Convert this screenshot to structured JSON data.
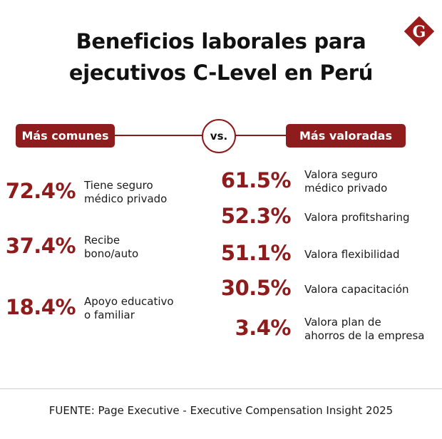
{
  "title": {
    "line1": "Beneficios laborales para",
    "line2": "ejecutivos C-Level en Perú"
  },
  "logo": {
    "letter": "G",
    "color": "#9b1b1b"
  },
  "header": {
    "left_label": "Más comunes",
    "vs_label": "vs.",
    "right_label": "Más valoradas"
  },
  "colors": {
    "accent": "#8f1c1c",
    "text": "#1a1a1a"
  },
  "chart_data": {
    "type": "table",
    "title": "Beneficios laborales para ejecutivos C-Level en Perú",
    "groups": [
      {
        "name": "Más comunes",
        "items": [
          {
            "value": "72.4%",
            "label_lines": [
              "Tiene seguro",
              "médico privado"
            ]
          },
          {
            "value": "37.4%",
            "label_lines": [
              "Recibe",
              "bono/auto"
            ]
          },
          {
            "value": "18.4%",
            "label_lines": [
              "Apoyo educativo",
              "o familiar"
            ]
          }
        ]
      },
      {
        "name": "Más valoradas",
        "items": [
          {
            "value": "61.5%",
            "label_lines": [
              "Valora seguro",
              "médico privado"
            ]
          },
          {
            "value": "52.3%",
            "label_lines": [
              "Valora profitsharing"
            ]
          },
          {
            "value": "51.1%",
            "label_lines": [
              "Valora flexibilidad"
            ]
          },
          {
            "value": "30.5%",
            "label_lines": [
              "Valora capacitación"
            ]
          },
          {
            "value": "3.4%",
            "label_lines": [
              "Valora plan de",
              "ahorros de la empresa"
            ]
          }
        ]
      }
    ]
  },
  "source": "FUENTE: Page Executive - Executive Compensation Insight 2025"
}
